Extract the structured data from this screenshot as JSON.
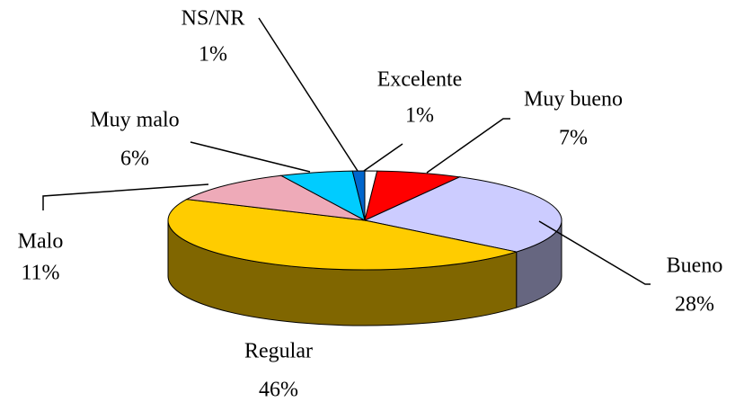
{
  "chart_data": {
    "type": "pie",
    "three_d": true,
    "categories": [
      "Excelente",
      "Muy bueno",
      "Bueno",
      "Regular",
      "Malo",
      "Muy malo",
      "NS/NR"
    ],
    "values": [
      1,
      7,
      28,
      46,
      11,
      6,
      1
    ],
    "value_labels": [
      "1%",
      "7%",
      "28%",
      "46%",
      "11%",
      "6%",
      "1%"
    ],
    "colors": [
      "#ffffff",
      "#ff0000",
      "#ccccff",
      "#ffcc00",
      "#eeaab8",
      "#00ccff",
      "#0066cc"
    ]
  }
}
